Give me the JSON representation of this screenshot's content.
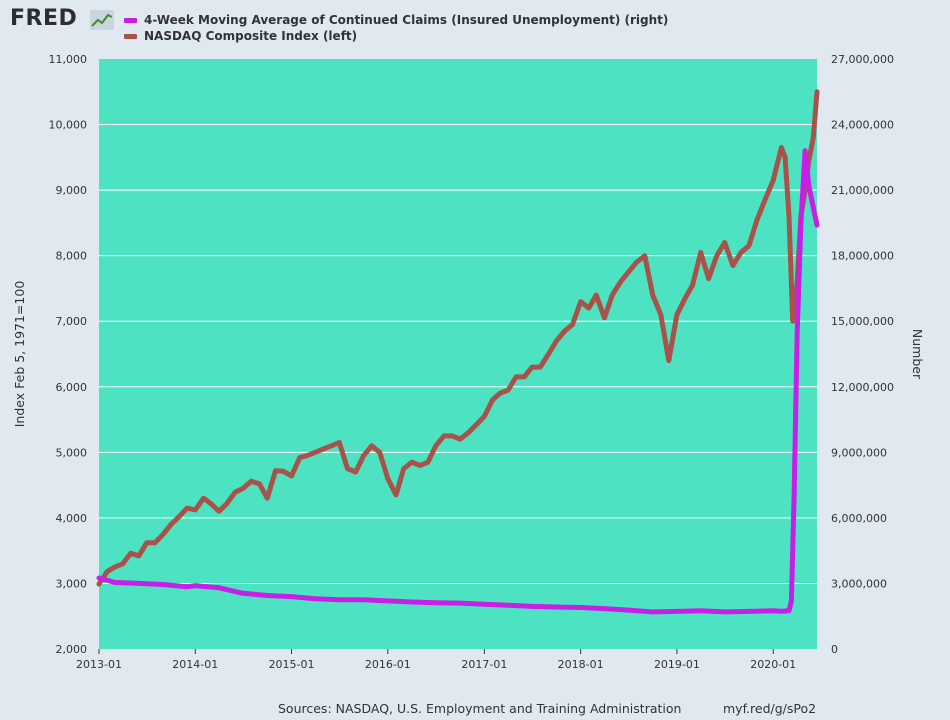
{
  "header": {
    "logo_text": "FRED",
    "logo_icon": "line-chart-icon"
  },
  "legend": [
    {
      "label": "4-Week Moving Average of Continued Claims (Insured Unemployment) (right)",
      "color": "#c81ee6"
    },
    {
      "label": "NASDAQ Composite Index (left)",
      "color": "#a8524a"
    }
  ],
  "footer": {
    "sources": "Sources: NASDAQ, U.S. Employment and Training Administration",
    "link": "myf.red/g/sPo2"
  },
  "chart_data": {
    "type": "line",
    "plot_background": "#4de3c2",
    "grid": true,
    "x_ticks": [
      "2013-01",
      "2014-01",
      "2015-01",
      "2016-01",
      "2017-01",
      "2018-01",
      "2019-01",
      "2020-01"
    ],
    "x_range": [
      "2013-01-01",
      "2020-06-15"
    ],
    "y_left": {
      "label": "Index Feb 5, 1971=100",
      "range": [
        2000,
        11000
      ],
      "ticks": [
        "2,000",
        "3,000",
        "4,000",
        "5,000",
        "6,000",
        "7,000",
        "8,000",
        "9,000",
        "10,000",
        "11,000"
      ]
    },
    "y_right": {
      "label": "Number",
      "range": [
        0,
        27000000
      ],
      "ticks": [
        "0",
        "3,000,000",
        "6,000,000",
        "9,000,000",
        "12,000,000",
        "15,000,000",
        "18,000,000",
        "21,000,000",
        "24,000,000",
        "27,000,000"
      ]
    },
    "series": [
      {
        "name": "NASDAQ Composite Index (left)",
        "axis": "left",
        "color": "#a8524a",
        "points": [
          [
            "2013-01-01",
            2990
          ],
          [
            "2013-02-01",
            3180
          ],
          [
            "2013-03-01",
            3250
          ],
          [
            "2013-04-01",
            3300
          ],
          [
            "2013-05-01",
            3460
          ],
          [
            "2013-06-01",
            3420
          ],
          [
            "2013-07-01",
            3620
          ],
          [
            "2013-08-01",
            3620
          ],
          [
            "2013-09-01",
            3750
          ],
          [
            "2013-10-01",
            3900
          ],
          [
            "2013-11-01",
            4020
          ],
          [
            "2013-12-01",
            4150
          ],
          [
            "2014-01-01",
            4120
          ],
          [
            "2014-02-01",
            4300
          ],
          [
            "2014-03-01",
            4220
          ],
          [
            "2014-04-01",
            4100
          ],
          [
            "2014-05-01",
            4220
          ],
          [
            "2014-06-01",
            4390
          ],
          [
            "2014-07-01",
            4450
          ],
          [
            "2014-08-01",
            4560
          ],
          [
            "2014-09-01",
            4520
          ],
          [
            "2014-10-01",
            4300
          ],
          [
            "2014-11-01",
            4720
          ],
          [
            "2014-12-01",
            4710
          ],
          [
            "2015-01-01",
            4640
          ],
          [
            "2015-02-01",
            4920
          ],
          [
            "2015-03-01",
            4950
          ],
          [
            "2015-04-01",
            5000
          ],
          [
            "2015-05-01",
            5050
          ],
          [
            "2015-06-01",
            5100
          ],
          [
            "2015-07-01",
            5150
          ],
          [
            "2015-08-01",
            4750
          ],
          [
            "2015-09-01",
            4700
          ],
          [
            "2015-10-01",
            4950
          ],
          [
            "2015-11-01",
            5100
          ],
          [
            "2015-12-01",
            5000
          ],
          [
            "2016-01-01",
            4600
          ],
          [
            "2016-02-01",
            4350
          ],
          [
            "2016-03-01",
            4750
          ],
          [
            "2016-04-01",
            4850
          ],
          [
            "2016-05-01",
            4800
          ],
          [
            "2016-06-01",
            4850
          ],
          [
            "2016-07-01",
            5100
          ],
          [
            "2016-08-01",
            5250
          ],
          [
            "2016-09-01",
            5250
          ],
          [
            "2016-10-01",
            5200
          ],
          [
            "2016-11-01",
            5300
          ],
          [
            "2016-12-01",
            5420
          ],
          [
            "2017-01-01",
            5550
          ],
          [
            "2017-02-01",
            5800
          ],
          [
            "2017-03-01",
            5900
          ],
          [
            "2017-04-01",
            5950
          ],
          [
            "2017-05-01",
            6150
          ],
          [
            "2017-06-01",
            6150
          ],
          [
            "2017-07-01",
            6300
          ],
          [
            "2017-08-01",
            6300
          ],
          [
            "2017-09-01",
            6500
          ],
          [
            "2017-10-01",
            6700
          ],
          [
            "2017-11-01",
            6850
          ],
          [
            "2017-12-01",
            6950
          ],
          [
            "2018-01-01",
            7300
          ],
          [
            "2018-02-01",
            7200
          ],
          [
            "2018-03-01",
            7400
          ],
          [
            "2018-04-01",
            7050
          ],
          [
            "2018-05-01",
            7400
          ],
          [
            "2018-06-01",
            7600
          ],
          [
            "2018-07-01",
            7750
          ],
          [
            "2018-08-01",
            7900
          ],
          [
            "2018-09-01",
            8000
          ],
          [
            "2018-10-01",
            7400
          ],
          [
            "2018-11-01",
            7100
          ],
          [
            "2018-12-01",
            6400
          ],
          [
            "2019-01-01",
            7100
          ],
          [
            "2019-02-01",
            7350
          ],
          [
            "2019-03-01",
            7550
          ],
          [
            "2019-04-01",
            8050
          ],
          [
            "2019-05-01",
            7650
          ],
          [
            "2019-06-01",
            8000
          ],
          [
            "2019-07-01",
            8200
          ],
          [
            "2019-08-01",
            7850
          ],
          [
            "2019-09-01",
            8050
          ],
          [
            "2019-10-01",
            8150
          ],
          [
            "2019-11-01",
            8550
          ],
          [
            "2019-12-01",
            8850
          ],
          [
            "2020-01-01",
            9150
          ],
          [
            "2020-02-01",
            9650
          ],
          [
            "2020-02-15",
            9500
          ],
          [
            "2020-03-01",
            8600
          ],
          [
            "2020-03-15",
            7000
          ],
          [
            "2020-04-01",
            7600
          ],
          [
            "2020-04-15",
            8600
          ],
          [
            "2020-05-01",
            9000
          ],
          [
            "2020-05-15",
            9450
          ],
          [
            "2020-06-01",
            9800
          ],
          [
            "2020-06-15",
            10500
          ]
        ]
      },
      {
        "name": "4-Week Moving Average of Continued Claims (Insured Unemployment) (right)",
        "axis": "right",
        "color": "#c81ee6",
        "points": [
          [
            "2013-01-01",
            3250000
          ],
          [
            "2013-03-01",
            3050000
          ],
          [
            "2013-06-01",
            3000000
          ],
          [
            "2013-09-01",
            2950000
          ],
          [
            "2013-12-01",
            2850000
          ],
          [
            "2014-01-01",
            2900000
          ],
          [
            "2014-04-01",
            2800000
          ],
          [
            "2014-07-01",
            2550000
          ],
          [
            "2014-10-01",
            2450000
          ],
          [
            "2015-01-01",
            2400000
          ],
          [
            "2015-04-01",
            2300000
          ],
          [
            "2015-07-01",
            2250000
          ],
          [
            "2015-10-01",
            2250000
          ],
          [
            "2016-01-01",
            2200000
          ],
          [
            "2016-04-01",
            2150000
          ],
          [
            "2016-07-01",
            2120000
          ],
          [
            "2016-10-01",
            2100000
          ],
          [
            "2017-01-01",
            2050000
          ],
          [
            "2017-04-01",
            2000000
          ],
          [
            "2017-07-01",
            1950000
          ],
          [
            "2017-10-01",
            1920000
          ],
          [
            "2018-01-01",
            1900000
          ],
          [
            "2018-04-01",
            1850000
          ],
          [
            "2018-07-01",
            1780000
          ],
          [
            "2018-10-01",
            1700000
          ],
          [
            "2019-01-01",
            1720000
          ],
          [
            "2019-04-01",
            1750000
          ],
          [
            "2019-07-01",
            1700000
          ],
          [
            "2019-10-01",
            1720000
          ],
          [
            "2020-01-01",
            1750000
          ],
          [
            "2020-02-01",
            1730000
          ],
          [
            "2020-03-01",
            1750000
          ],
          [
            "2020-03-10",
            2200000
          ],
          [
            "2020-03-20",
            7000000
          ],
          [
            "2020-04-01",
            14500000
          ],
          [
            "2020-04-15",
            19500000
          ],
          [
            "2020-05-01",
            22800000
          ],
          [
            "2020-05-15",
            21200000
          ],
          [
            "2020-06-01",
            20200000
          ],
          [
            "2020-06-15",
            19400000
          ]
        ]
      }
    ]
  }
}
